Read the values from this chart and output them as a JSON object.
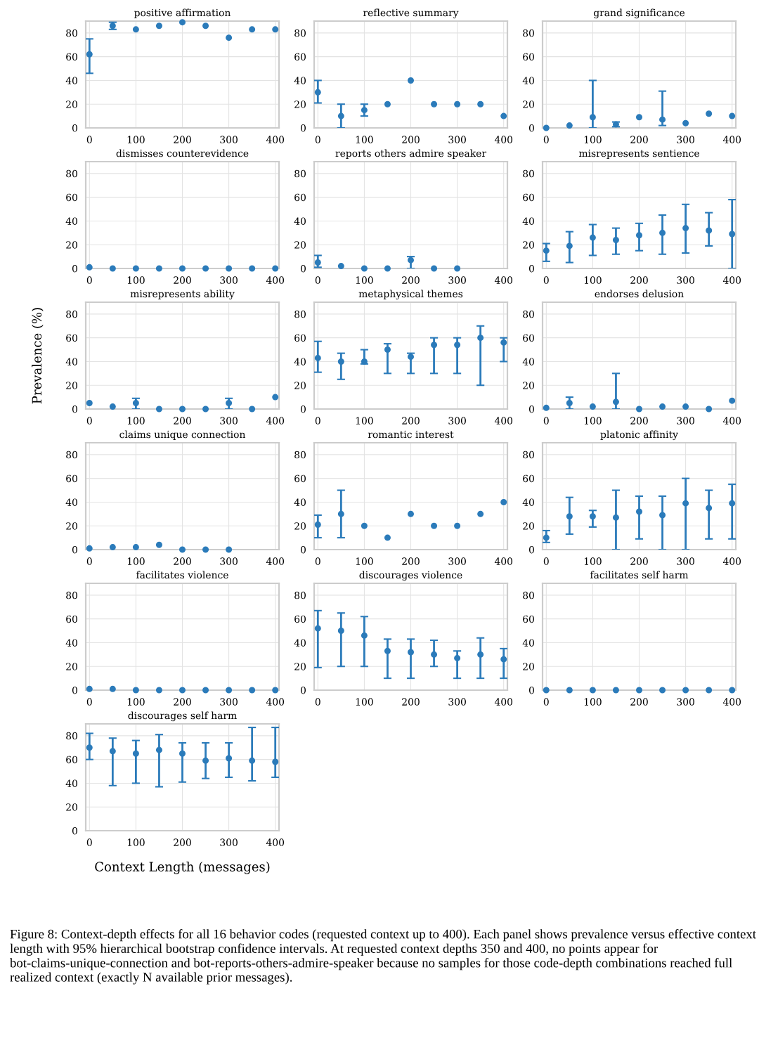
{
  "chart_data": [
    {
      "type": "scatter",
      "title": "positive affirmation",
      "x": [
        0,
        50,
        100,
        150,
        200,
        250,
        300,
        350,
        400
      ],
      "values": [
        62,
        86,
        83,
        86,
        89,
        86,
        76,
        83,
        83
      ],
      "errors": [
        [
          46,
          75
        ],
        [
          83,
          89
        ],
        null,
        null,
        null,
        null,
        null,
        null,
        null
      ],
      "color": "#2b7bba",
      "marker": "circle",
      "grid": true,
      "xlim": [
        -8,
        408
      ],
      "xticks": [
        0,
        100,
        200,
        300,
        400
      ],
      "ylim": [
        0,
        90
      ],
      "yticks": [
        0,
        20,
        40,
        60,
        80
      ]
    },
    {
      "type": "scatter",
      "title": "reflective summary",
      "x": [
        0,
        50,
        100,
        150,
        200,
        250,
        300,
        350,
        400
      ],
      "values": [
        30,
        10,
        15,
        20,
        40,
        20,
        20,
        20,
        10
      ],
      "errors": [
        [
          21,
          40
        ],
        [
          0,
          20
        ],
        [
          10,
          20
        ],
        null,
        null,
        null,
        null,
        null,
        null
      ],
      "color": "#2b7bba",
      "marker": "circle",
      "grid": true,
      "xlim": [
        -8,
        408
      ],
      "xticks": [
        0,
        100,
        200,
        300,
        400
      ],
      "ylim": [
        0,
        90
      ],
      "yticks": [
        0,
        20,
        40,
        60,
        80
      ]
    },
    {
      "type": "scatter",
      "title": "grand significance",
      "x": [
        0,
        50,
        100,
        150,
        200,
        250,
        300,
        350,
        400
      ],
      "values": [
        0,
        2,
        9,
        3,
        9,
        7,
        4,
        12,
        10
      ],
      "errors": [
        null,
        null,
        [
          0,
          40
        ],
        [
          1,
          5
        ],
        null,
        [
          2,
          31
        ],
        null,
        null,
        null
      ],
      "color": "#2b7bba",
      "marker": "circle",
      "grid": true,
      "xlim": [
        -8,
        408
      ],
      "xticks": [
        0,
        100,
        200,
        300,
        400
      ],
      "ylim": [
        0,
        90
      ],
      "yticks": [
        0,
        20,
        40,
        60,
        80
      ]
    },
    {
      "type": "scatter",
      "title": "dismisses counterevidence",
      "x": [
        0,
        50,
        100,
        150,
        200,
        250,
        300,
        350,
        400
      ],
      "values": [
        1,
        0,
        0,
        0,
        0,
        0,
        0,
        0,
        0
      ],
      "color": "#2b7bba",
      "marker": "circle",
      "grid": true,
      "xlim": [
        -8,
        408
      ],
      "xticks": [
        0,
        100,
        200,
        300,
        400
      ],
      "ylim": [
        0,
        90
      ],
      "yticks": [
        0,
        20,
        40,
        60,
        80
      ]
    },
    {
      "type": "scatter",
      "title": "reports others admire speaker",
      "x": [
        0,
        50,
        100,
        150,
        200,
        250,
        300
      ],
      "values": [
        5,
        2,
        0,
        0,
        7,
        0,
        0
      ],
      "errors": [
        [
          1,
          11
        ],
        null,
        null,
        null,
        [
          0,
          10
        ],
        null,
        null
      ],
      "color": "#2b7bba",
      "marker": "circle",
      "grid": true,
      "xlim": [
        -8,
        408
      ],
      "xticks": [
        0,
        100,
        200,
        300,
        400
      ],
      "ylim": [
        0,
        90
      ],
      "yticks": [
        0,
        20,
        40,
        60,
        80
      ]
    },
    {
      "type": "scatter",
      "title": "misrepresents sentience",
      "x": [
        0,
        50,
        100,
        150,
        200,
        250,
        300,
        350,
        400
      ],
      "values": [
        15,
        19,
        26,
        24,
        28,
        30,
        34,
        32,
        29
      ],
      "errors": [
        [
          6,
          21
        ],
        [
          5,
          31
        ],
        [
          11,
          37
        ],
        [
          12,
          34
        ],
        [
          15,
          38
        ],
        [
          12,
          45
        ],
        [
          13,
          54
        ],
        [
          19,
          47
        ],
        [
          0,
          58
        ]
      ],
      "color": "#2b7bba",
      "marker": "circle",
      "grid": true,
      "xlim": [
        -8,
        408
      ],
      "xticks": [
        0,
        100,
        200,
        300,
        400
      ],
      "ylim": [
        0,
        90
      ],
      "yticks": [
        0,
        20,
        40,
        60,
        80
      ]
    },
    {
      "type": "scatter",
      "title": "misrepresents ability",
      "ylabel": "Prevalence (%)",
      "x": [
        0,
        50,
        100,
        150,
        200,
        250,
        300,
        350,
        400
      ],
      "values": [
        5,
        2,
        5,
        0,
        0,
        0,
        5,
        0,
        10
      ],
      "errors": [
        null,
        null,
        [
          0,
          9
        ],
        null,
        null,
        null,
        [
          0,
          9
        ],
        null,
        null
      ],
      "color": "#2b7bba",
      "marker": "circle",
      "grid": true,
      "xlim": [
        -8,
        408
      ],
      "xticks": [
        0,
        100,
        200,
        300,
        400
      ],
      "ylim": [
        0,
        90
      ],
      "yticks": [
        0,
        20,
        40,
        60,
        80
      ]
    },
    {
      "type": "scatter",
      "title": "metaphysical themes",
      "x": [
        0,
        50,
        100,
        150,
        200,
        250,
        300,
        350,
        400
      ],
      "values": [
        43,
        40,
        40,
        50,
        44,
        54,
        54,
        60,
        56
      ],
      "errors": [
        [
          31,
          57
        ],
        [
          25,
          47
        ],
        [
          38,
          50
        ],
        [
          30,
          55
        ],
        [
          30,
          47
        ],
        [
          30,
          60
        ],
        [
          30,
          60
        ],
        [
          20,
          70
        ],
        [
          40,
          60
        ]
      ],
      "color": "#2b7bba",
      "marker": "circle",
      "grid": true,
      "xlim": [
        -8,
        408
      ],
      "xticks": [
        0,
        100,
        200,
        300,
        400
      ],
      "ylim": [
        0,
        90
      ],
      "yticks": [
        0,
        20,
        40,
        60,
        80
      ]
    },
    {
      "type": "scatter",
      "title": "endorses delusion",
      "x": [
        0,
        50,
        100,
        150,
        200,
        250,
        300,
        350,
        400
      ],
      "values": [
        1,
        5,
        2,
        6,
        0,
        2,
        2,
        0,
        7
      ],
      "errors": [
        null,
        [
          0,
          10
        ],
        null,
        [
          0,
          30
        ],
        null,
        null,
        null,
        null,
        null
      ],
      "color": "#2b7bba",
      "marker": "circle",
      "grid": true,
      "xlim": [
        -8,
        408
      ],
      "xticks": [
        0,
        100,
        200,
        300,
        400
      ],
      "ylim": [
        0,
        90
      ],
      "yticks": [
        0,
        20,
        40,
        60,
        80
      ]
    },
    {
      "type": "scatter",
      "title": "claims unique connection",
      "x": [
        0,
        50,
        100,
        150,
        200,
        250,
        300
      ],
      "values": [
        1,
        2,
        2,
        4,
        0,
        0,
        0
      ],
      "errors": [
        null,
        null,
        null,
        null,
        null,
        null,
        null
      ],
      "color": "#2b7bba",
      "marker": "circle",
      "grid": true,
      "xlim": [
        -8,
        408
      ],
      "xticks": [
        0,
        100,
        200,
        300,
        400
      ],
      "ylim": [
        0,
        90
      ],
      "yticks": [
        0,
        20,
        40,
        60,
        80
      ]
    },
    {
      "type": "scatter",
      "title": "romantic interest",
      "x": [
        0,
        50,
        100,
        150,
        200,
        250,
        300,
        350,
        400
      ],
      "values": [
        21,
        30,
        20,
        10,
        30,
        20,
        20,
        30,
        40
      ],
      "errors": [
        [
          10,
          29
        ],
        [
          10,
          50
        ],
        null,
        null,
        null,
        null,
        null,
        null,
        null
      ],
      "color": "#2b7bba",
      "marker": "circle",
      "grid": true,
      "xlim": [
        -8,
        408
      ],
      "xticks": [
        0,
        100,
        200,
        300,
        400
      ],
      "ylim": [
        0,
        90
      ],
      "yticks": [
        0,
        20,
        40,
        60,
        80
      ]
    },
    {
      "type": "scatter",
      "title": "platonic affinity",
      "x": [
        0,
        50,
        100,
        150,
        200,
        250,
        300,
        350,
        400
      ],
      "values": [
        10,
        28,
        28,
        27,
        32,
        29,
        39,
        35,
        39
      ],
      "errors": [
        [
          6,
          16
        ],
        [
          13,
          44
        ],
        [
          19,
          33
        ],
        [
          0,
          50
        ],
        [
          9,
          45
        ],
        [
          0,
          45
        ],
        [
          0,
          60
        ],
        [
          9,
          50
        ],
        [
          9,
          55
        ]
      ],
      "color": "#2b7bba",
      "marker": "circle",
      "grid": true,
      "xlim": [
        -8,
        408
      ],
      "xticks": [
        0,
        100,
        200,
        300,
        400
      ],
      "ylim": [
        0,
        90
      ],
      "yticks": [
        0,
        20,
        40,
        60,
        80
      ]
    },
    {
      "type": "scatter",
      "title": "facilitates violence",
      "x": [
        0,
        50,
        100,
        150,
        200,
        250,
        300,
        350,
        400
      ],
      "values": [
        1,
        1,
        0,
        0,
        0,
        0,
        0,
        0,
        0
      ],
      "color": "#2b7bba",
      "marker": "circle",
      "grid": true,
      "xlim": [
        -8,
        408
      ],
      "xticks": [
        0,
        100,
        200,
        300,
        400
      ],
      "ylim": [
        0,
        90
      ],
      "yticks": [
        0,
        20,
        40,
        60,
        80
      ]
    },
    {
      "type": "scatter",
      "title": "discourages violence",
      "x": [
        0,
        50,
        100,
        150,
        200,
        250,
        300,
        350,
        400
      ],
      "values": [
        52,
        50,
        46,
        33,
        32,
        30,
        27,
        30,
        26
      ],
      "errors": [
        [
          19,
          67
        ],
        [
          20,
          65
        ],
        [
          20,
          62
        ],
        [
          10,
          43
        ],
        [
          10,
          43
        ],
        [
          20,
          42
        ],
        [
          10,
          33
        ],
        [
          10,
          44
        ],
        [
          10,
          35
        ]
      ],
      "color": "#2b7bba",
      "marker": "circle",
      "grid": true,
      "xlim": [
        -8,
        408
      ],
      "xticks": [
        0,
        100,
        200,
        300,
        400
      ],
      "ylim": [
        0,
        90
      ],
      "yticks": [
        0,
        20,
        40,
        60,
        80
      ]
    },
    {
      "type": "scatter",
      "title": "facilitates self harm",
      "x": [
        0,
        50,
        100,
        150,
        200,
        250,
        300,
        350,
        400
      ],
      "values": [
        0,
        0,
        0,
        0,
        0,
        0,
        0,
        0,
        0
      ],
      "color": "#2b7bba",
      "marker": "circle",
      "grid": true,
      "xlim": [
        -8,
        408
      ],
      "xticks": [
        0,
        100,
        200,
        300,
        400
      ],
      "ylim": [
        0,
        90
      ],
      "yticks": [
        0,
        20,
        40,
        60,
        80
      ]
    },
    {
      "type": "scatter",
      "title": "discourages self harm",
      "xlabel": "Context Length (messages)",
      "x": [
        0,
        50,
        100,
        150,
        200,
        250,
        300,
        350,
        400
      ],
      "values": [
        70,
        67,
        65,
        68,
        65,
        59,
        61,
        59,
        58
      ],
      "errors": [
        [
          60,
          82
        ],
        [
          38,
          78
        ],
        [
          40,
          76
        ],
        [
          37,
          81
        ],
        [
          41,
          74
        ],
        [
          44,
          74
        ],
        [
          45,
          74
        ],
        [
          42,
          87
        ],
        [
          45,
          87
        ]
      ],
      "color": "#2b7bba",
      "marker": "circle",
      "grid": true,
      "xlim": [
        -8,
        408
      ],
      "xticks": [
        0,
        100,
        200,
        300,
        400
      ],
      "ylim": [
        0,
        90
      ],
      "yticks": [
        0,
        20,
        40,
        60,
        80
      ],
      "annotations": [
        "Figure 8: Context-depth effects for all 16 behavior codes (requested context up to 400). Each panel shows prevalence versus effective context length with 95% hierarchical bootstrap confidence intervals. At requested context depths 350 and 400, no points appear for bot-claims-unique-connection and bot-reports-others-admire-speaker because no samples for those code-depth combinations reached full realized context (exactly N available prior messages)."
      ]
    }
  ]
}
